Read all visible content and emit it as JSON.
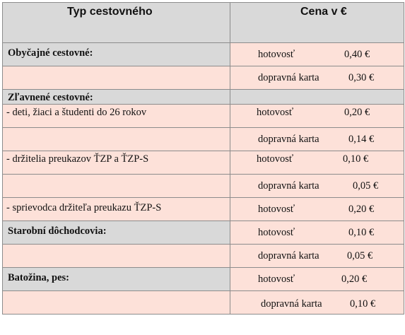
{
  "header": {
    "type_label": "Typ cestovného",
    "price_label": "Cena v €"
  },
  "rows": [
    {
      "type": "Obyčajné cestovné:",
      "category": true,
      "method": "hotovosť",
      "price": "0,40 €"
    },
    {
      "type": "",
      "category": false,
      "method": "dopravná karta",
      "price": "0,30 €"
    },
    {
      "type": "Zľavnené cestovné:",
      "category": true,
      "method": "",
      "price": ""
    },
    {
      "type": " - deti, žiaci a študenti do 26 rokov",
      "category": false,
      "method": "hotovosť",
      "price": "0,20 €"
    },
    {
      "type": "",
      "category": false,
      "method": "dopravná karta",
      "price": "0,14 €"
    },
    {
      "type": "- držitelia preukazov ŤZP a ŤZP-S",
      "category": false,
      "method": "hotovosť",
      "price": "0,10 €"
    },
    {
      "type": "",
      "category": false,
      "method": "dopravná karta",
      "price": "0,05 €"
    },
    {
      "type": "- sprievodca držiteľa preukazu ŤZP-S",
      "category": false,
      "method": "hotovosť",
      "price": "0,20 €"
    },
    {
      "type": "Starobní dôchodcovia:",
      "category": true,
      "method": "hotovosť",
      "price": "0,10 €"
    },
    {
      "type": "",
      "category": false,
      "method": "dopravná karta",
      "price": "0,05 €"
    },
    {
      "type": "Batožina, pes:",
      "category": true,
      "method": "hotovosť",
      "price": "0,20 €"
    },
    {
      "type": "",
      "category": false,
      "method": "dopravná karta",
      "price": "0,10 €"
    }
  ],
  "colors": {
    "header_bg": "#d9d9d9",
    "category_bg": "#d9d9d9",
    "row_bg": "#fde1d9",
    "border": "#8c8c8c"
  }
}
